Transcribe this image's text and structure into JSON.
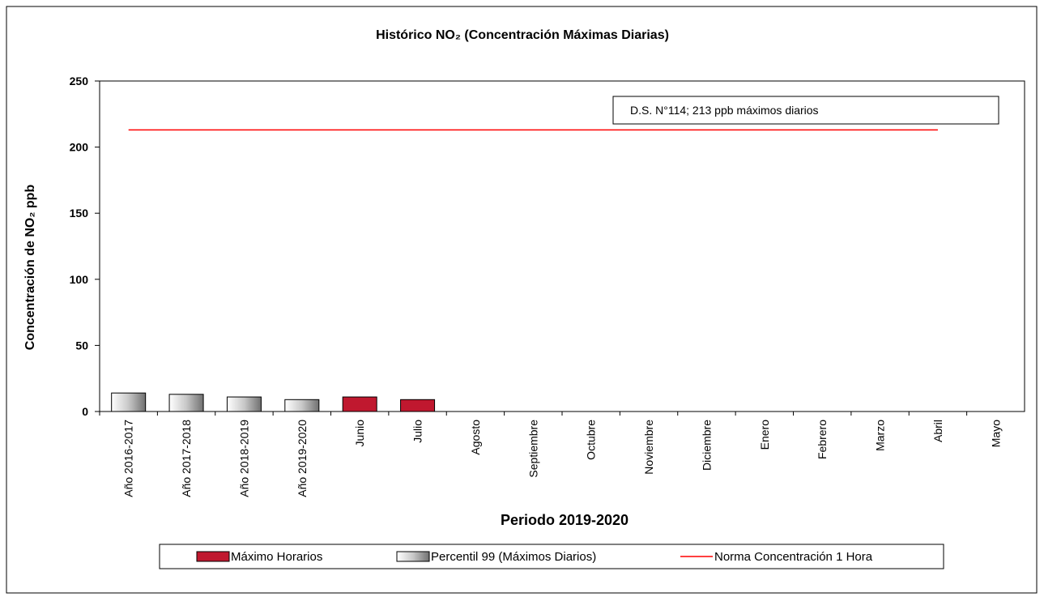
{
  "chart_data": {
    "type": "bar",
    "title": "Histórico NO₂ (Concentración Máximas Diarias)",
    "y_label": "Concentración  de NO₂ ppb",
    "x_label": "Periodo 2019-2020",
    "annotation": "D.S. N°114; 213 ppb  máximos diarios",
    "categories": [
      "Año 2016-2017",
      "Año 2017-2018",
      "Año 2018-2019",
      "Año 2019-2020",
      "Junio",
      "Julio",
      "Agosto",
      "Septiembre",
      "Octubre",
      "Noviembre",
      "Diciembre",
      "Enero",
      "Febrero",
      "Marzo",
      "Abril",
      "Mayo"
    ],
    "series": [
      {
        "name": "Máximo  Horarios",
        "color": "#c0182f",
        "type": "bar",
        "values": [
          null,
          null,
          null,
          null,
          11,
          9,
          null,
          null,
          null,
          null,
          null,
          null,
          null,
          null,
          null,
          null
        ]
      },
      {
        "name": "Percentil 99 (Máximos Diarios)",
        "color": "#a0a0a0",
        "type": "bar",
        "values": [
          14,
          13,
          11,
          9,
          null,
          null,
          null,
          null,
          null,
          null,
          null,
          null,
          null,
          null,
          null,
          null
        ]
      },
      {
        "name": "Norma Concentración 1 Hora",
        "color": "#ff0000",
        "type": "line",
        "values": [
          213,
          213,
          213,
          213,
          213,
          213,
          213,
          213,
          213,
          213,
          213,
          213,
          213,
          213,
          213,
          null
        ]
      }
    ],
    "ylim": [
      0,
      250
    ],
    "yticks": [
      0,
      50,
      100,
      150,
      200,
      250
    ],
    "grid": false
  }
}
